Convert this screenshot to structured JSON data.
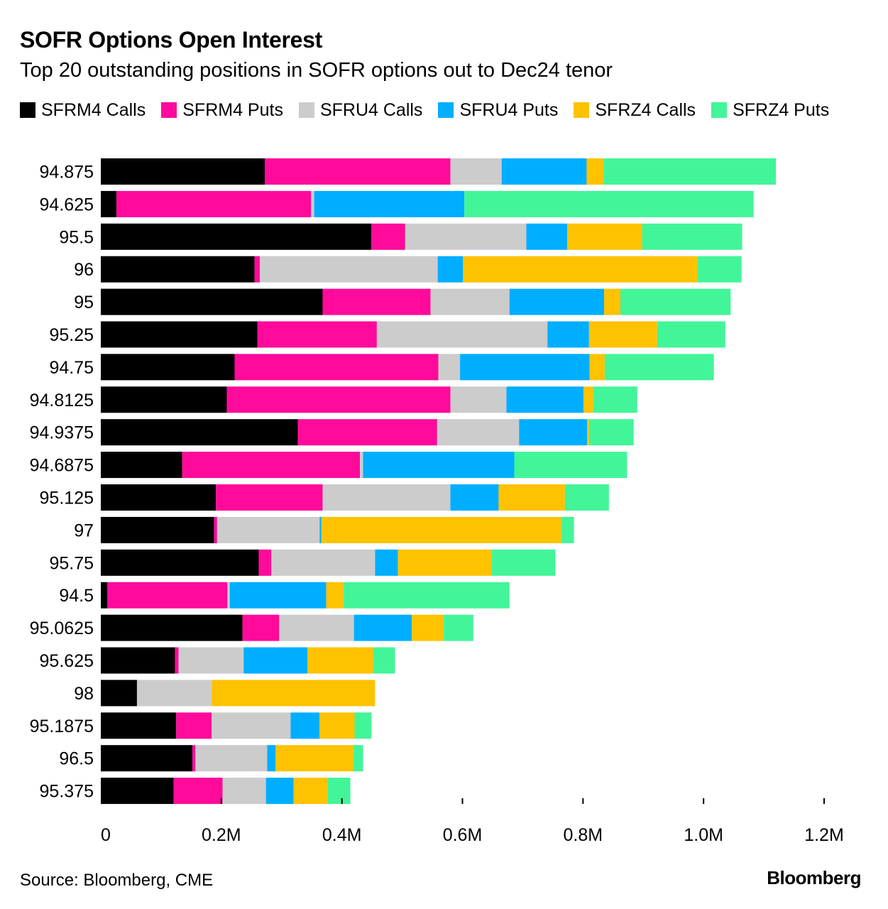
{
  "title": "SOFR Options Open Interest",
  "subtitle": "Top 20 outstanding positions in SOFR options out to Dec24 tenor",
  "source": "Source: Bloomberg, CME",
  "brand": "Bloomberg",
  "chart_data": {
    "type": "bar",
    "orientation": "horizontal",
    "stacked": true,
    "title": "SOFR Options Open Interest",
    "subtitle": "Top 20 outstanding positions in SOFR options out to Dec24 tenor",
    "xlabel": "",
    "ylabel": "",
    "xlim": [
      0,
      1200000
    ],
    "x_ticks": [
      0,
      200000,
      400000,
      600000,
      800000,
      1000000,
      1200000
    ],
    "x_tick_labels": [
      "0",
      "0.2M",
      "0.4M",
      "0.6M",
      "0.8M",
      "1.0M",
      "1.2M"
    ],
    "grid": false,
    "legend_position": "top-left",
    "categories": [
      "94.875",
      "94.625",
      "95.5",
      "96",
      "95",
      "95.25",
      "94.75",
      "94.8125",
      "94.9375",
      "94.6875",
      "95.125",
      "97",
      "95.75",
      "94.5",
      "95.0625",
      "95.625",
      "98",
      "95.1875",
      "96.5",
      "95.375"
    ],
    "series": [
      {
        "name": "SFRM4 Calls",
        "color": "#000000",
        "values": [
          272000,
          26000,
          449000,
          255000,
          368000,
          260000,
          222000,
          209000,
          327000,
          135000,
          191000,
          188000,
          262000,
          11000,
          235000,
          123000,
          60000,
          125000,
          152000,
          121000
        ]
      },
      {
        "name": "SFRM4 Puts",
        "color": "#FF0A9B",
        "values": [
          308000,
          323000,
          56000,
          9000,
          179000,
          198000,
          338000,
          371000,
          231000,
          295000,
          177000,
          5000,
          21000,
          199000,
          61000,
          6000,
          0,
          59000,
          5000,
          81000
        ]
      },
      {
        "name": "SFRU4 Calls",
        "color": "#CCCCCC",
        "values": [
          85000,
          5000,
          201000,
          295000,
          131000,
          283000,
          36000,
          93000,
          136000,
          5000,
          212000,
          170000,
          172000,
          4000,
          124000,
          108000,
          124000,
          131000,
          119000,
          72000
        ]
      },
      {
        "name": "SFRU4 Puts",
        "color": "#00AEFF",
        "values": [
          141000,
          249000,
          68000,
          42000,
          157000,
          69000,
          215000,
          128000,
          113000,
          251000,
          80000,
          3000,
          38000,
          160000,
          96000,
          106000,
          0,
          48000,
          14000,
          46000
        ]
      },
      {
        "name": "SFRZ4 Calls",
        "color": "#FFC200",
        "values": [
          28000,
          0,
          124000,
          389000,
          27000,
          113000,
          25000,
          16000,
          3000,
          0,
          110000,
          398000,
          155000,
          29000,
          53000,
          109000,
          271000,
          58000,
          129000,
          56000
        ]
      },
      {
        "name": "SFRZ4 Puts",
        "color": "#42F598",
        "values": [
          286000,
          480000,
          166000,
          73000,
          183000,
          113000,
          181000,
          73000,
          74000,
          187000,
          73000,
          21000,
          106000,
          275000,
          49000,
          36000,
          0,
          28000,
          16000,
          38000
        ]
      }
    ]
  }
}
